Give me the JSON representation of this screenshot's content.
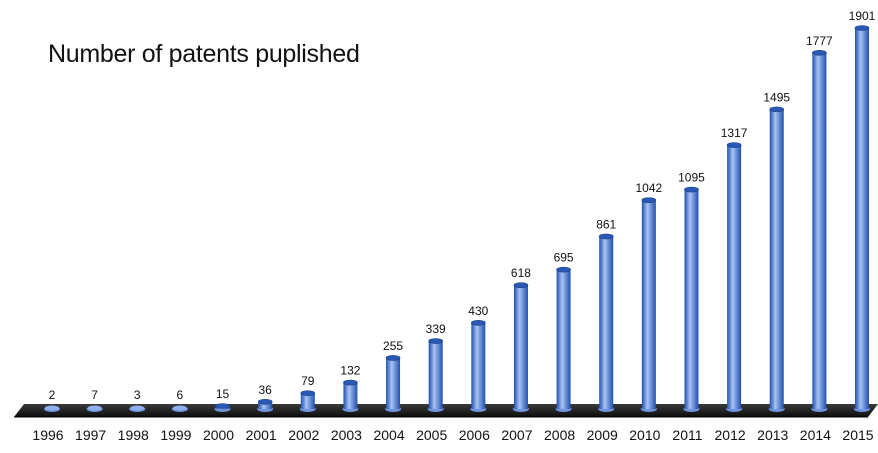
{
  "chart_data": {
    "type": "bar",
    "title": "Number of patents puplished",
    "xlabel": "",
    "ylabel": "",
    "categories": [
      "1996",
      "1997",
      "1998",
      "1999",
      "2000",
      "2001",
      "2002",
      "2003",
      "2004",
      "2005",
      "2006",
      "2007",
      "2008",
      "2009",
      "2010",
      "2011",
      "2012",
      "2013",
      "2014",
      "2015"
    ],
    "values": [
      2,
      7,
      3,
      6,
      15,
      36,
      79,
      132,
      255,
      339,
      430,
      618,
      695,
      861,
      1042,
      1095,
      1317,
      1495,
      1777,
      1901
    ],
    "ylim": [
      0,
      1901
    ],
    "grid": false,
    "legend": "none",
    "style": "3d-cylinder",
    "colors": {
      "bar_light": "#a9c3f2",
      "bar_mid": "#5a8ee6",
      "bar_dark": "#1f4fb0",
      "floor": "#1b1b1b",
      "text": "#111111"
    }
  }
}
